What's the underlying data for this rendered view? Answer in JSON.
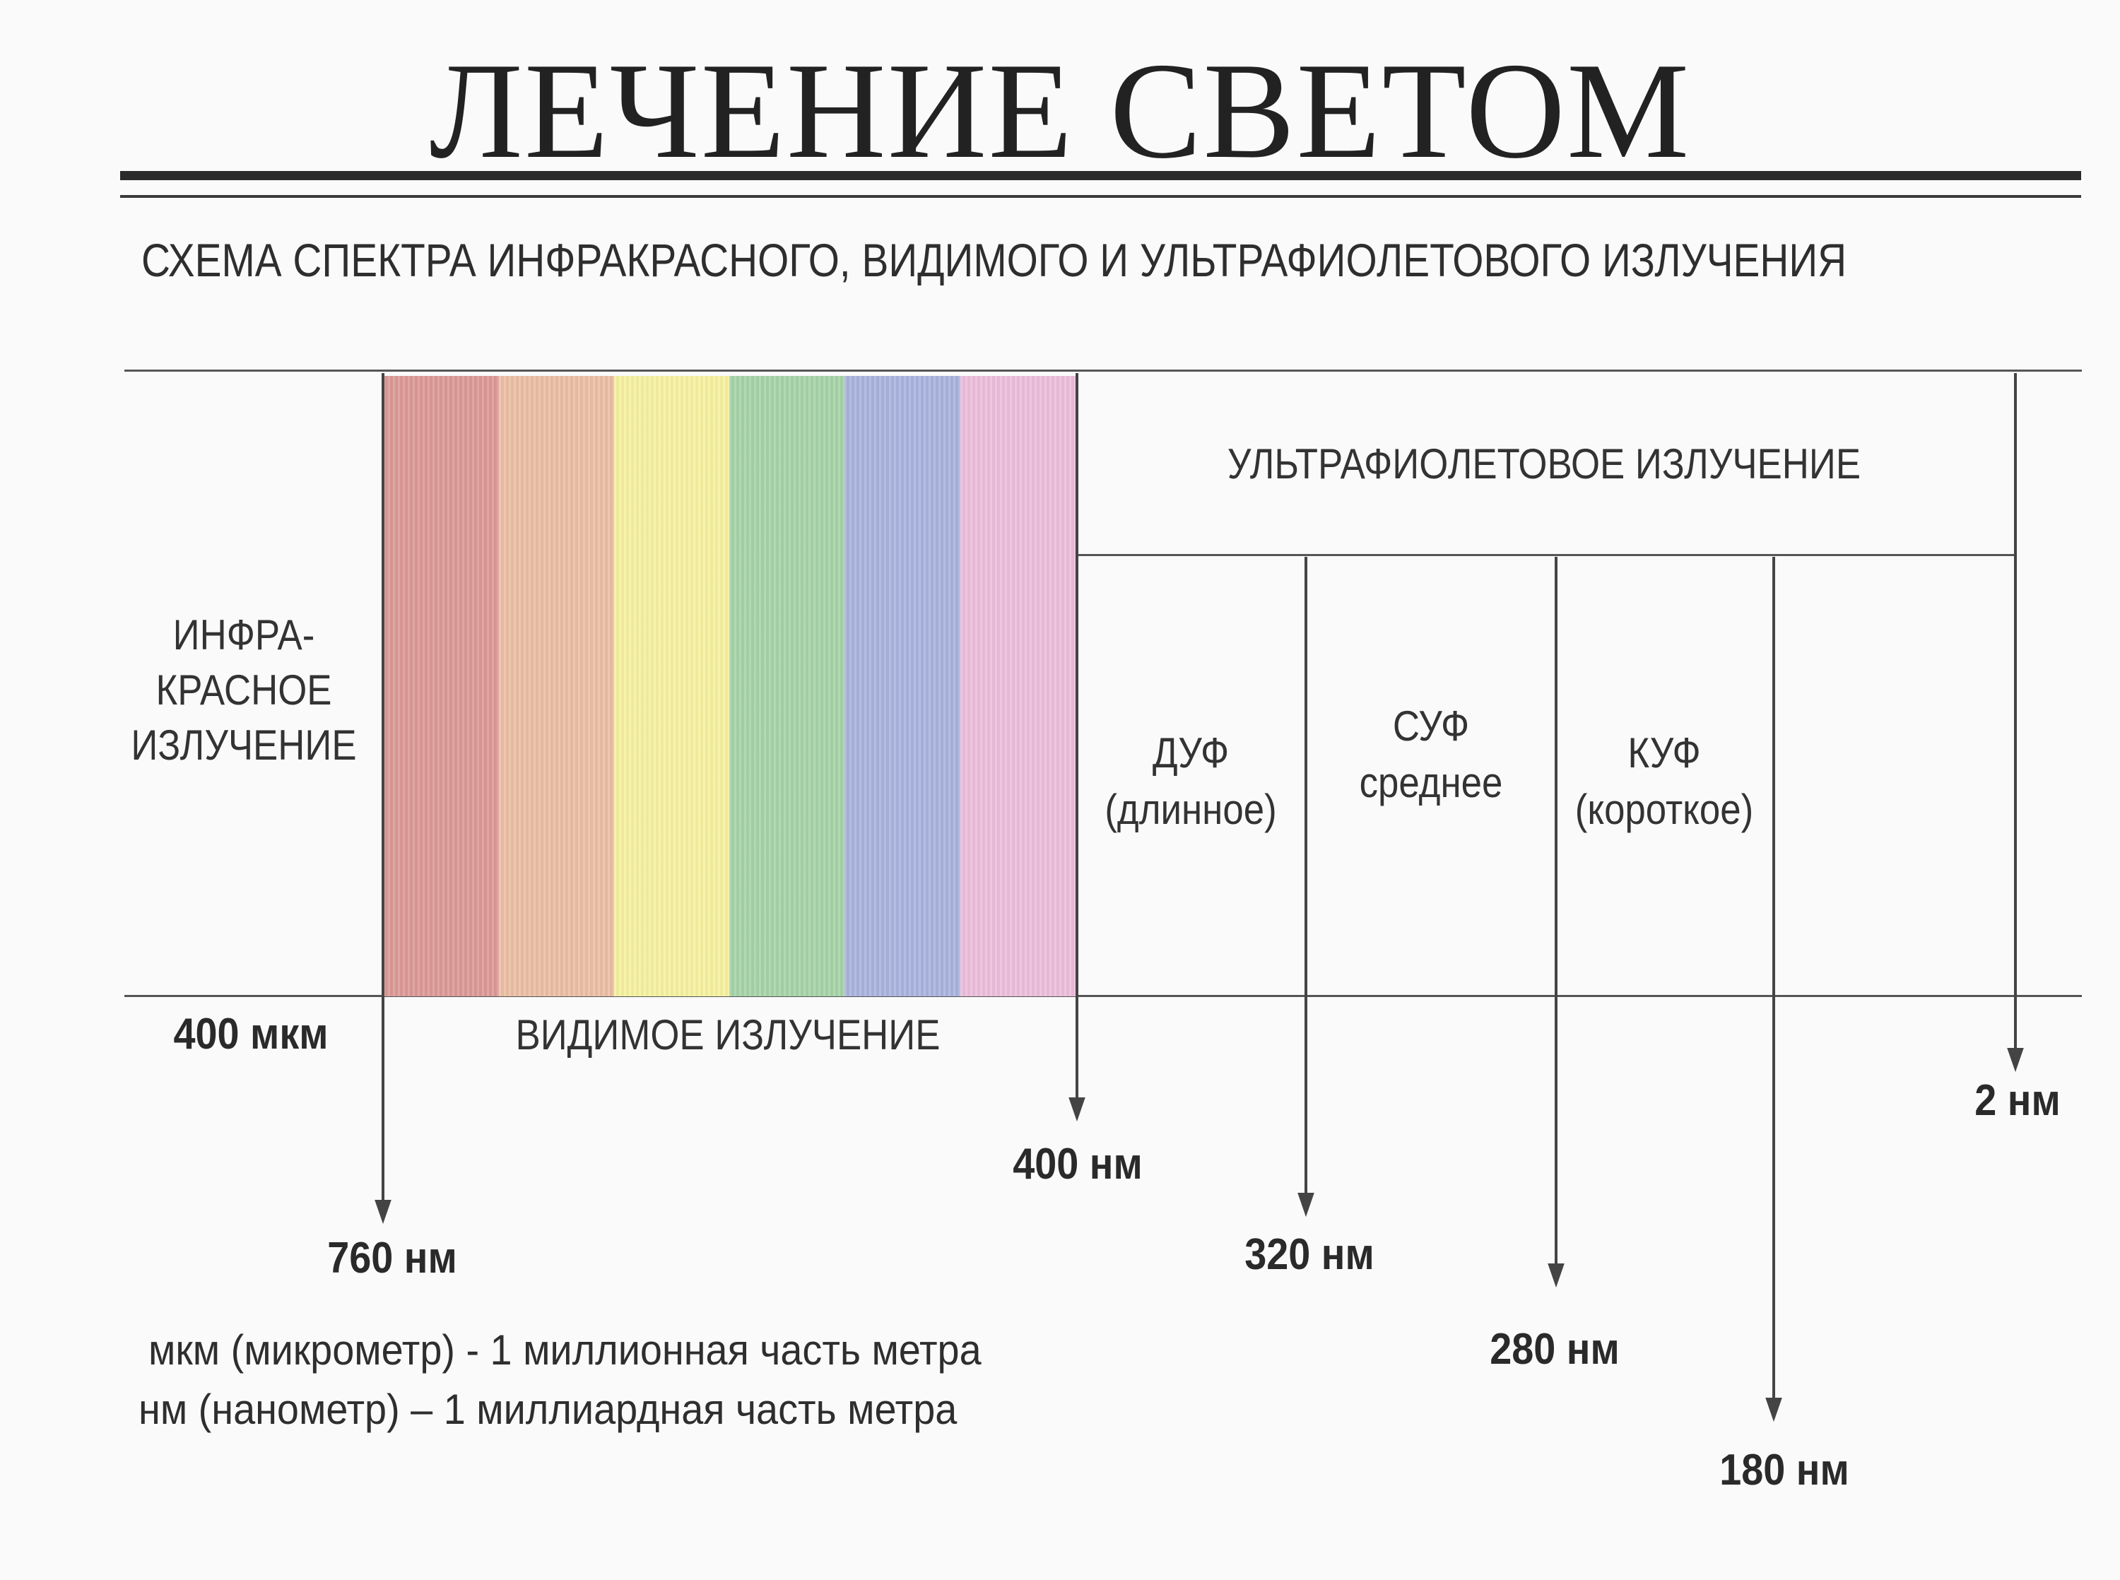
{
  "title": "ЛЕЧЕНИЕ СВЕТОМ",
  "subtitle": "СХЕМА СПЕКТРА ИНФРАКРАСНОГО, ВИДИМОГО И УЛЬТРАФИОЛЕТОВОГО ИЗЛУЧЕНИЯ",
  "infrared": {
    "line1": "ИНФРА-",
    "line2": "КРАСНОЕ",
    "line3": "ИЗЛУЧЕНИЕ"
  },
  "visible_label": "ВИДИМОЕ ИЗЛУЧЕНИЕ",
  "uv_label": "УЛЬТРАФИОЛЕТОВОЕ ИЗЛУЧЕНИЕ",
  "uv_bands": {
    "long": {
      "name": "ДУФ",
      "desc": "(длинное)"
    },
    "medium": {
      "name": "СУФ",
      "desc": "среднее"
    },
    "short": {
      "name": "КУФ",
      "desc": "(короткое)"
    }
  },
  "marks": {
    "ir_start": "400 мкм",
    "m760": "760 нм",
    "m400": "400 нм",
    "m320": "320 нм",
    "m280": "280 нм",
    "m180": "180 нм",
    "m2": "2 нм"
  },
  "notes": {
    "line1": "мкм (микрометр) -  1 миллионная часть метра",
    "line2": "нм (нанометр) – 1 миллиардная часть метра"
  },
  "colors": {
    "spectrum": [
      "#dc9a96",
      "#ebbfa4",
      "#f6f1a0",
      "#a6d4a8",
      "#aab4de",
      "#ecbedc"
    ]
  }
}
